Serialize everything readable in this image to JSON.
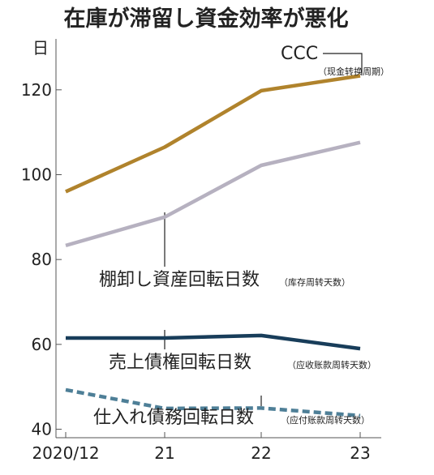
{
  "chart_data": {
    "type": "line",
    "title": "在庫が滞留し資金効率が悪化",
    "ylabel": "日",
    "categories": [
      "2020/12",
      "21",
      "22",
      "23"
    ],
    "ylim": [
      38,
      132
    ],
    "yticks": [
      40,
      60,
      80,
      100,
      120
    ],
    "grid": false,
    "series": [
      {
        "name": "CCC",
        "note": "（现金转换周期）",
        "color": "#b0832c",
        "style": "solid",
        "values": [
          96,
          106.5,
          119.8,
          123.3
        ]
      },
      {
        "name": "棚卸し資産回転日数",
        "note": "（库存周转天数）",
        "color": "#b6b1c0",
        "style": "solid",
        "values": [
          83.3,
          90,
          102.2,
          107.6
        ]
      },
      {
        "name": "売上債権回転日数",
        "note": "（应收账款周转天数）",
        "color": "#183d5a",
        "style": "solid",
        "values": [
          61.5,
          61.5,
          62.1,
          59.0
        ]
      },
      {
        "name": "仕入れ債務回転日数",
        "note": "（应付账款周转天数）",
        "color": "#4e7f97",
        "style": "dashed",
        "values": [
          49.3,
          44.9,
          45.0,
          43.2
        ]
      }
    ]
  }
}
